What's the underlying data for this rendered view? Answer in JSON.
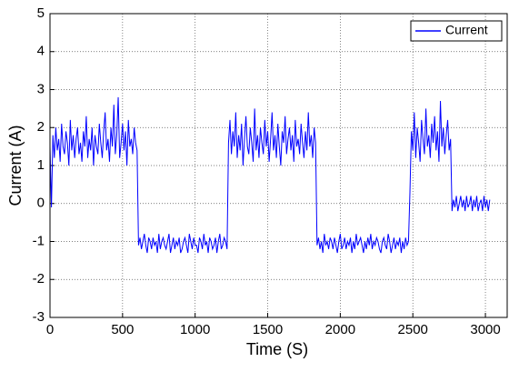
{
  "chart_data": {
    "type": "line",
    "xlabel": "Time (S)",
    "ylabel": "Current (A)",
    "x": [
      0,
      10,
      20,
      30,
      40,
      50,
      60,
      70,
      80,
      90,
      100,
      110,
      120,
      130,
      140,
      150,
      160,
      170,
      180,
      190,
      200,
      210,
      220,
      230,
      240,
      250,
      260,
      270,
      280,
      290,
      300,
      310,
      320,
      330,
      340,
      350,
      360,
      370,
      380,
      390,
      400,
      410,
      420,
      430,
      440,
      450,
      460,
      470,
      480,
      490,
      500,
      510,
      520,
      530,
      540,
      550,
      560,
      570,
      580,
      590,
      600,
      610,
      620,
      630,
      640,
      650,
      660,
      670,
      680,
      690,
      700,
      710,
      720,
      730,
      740,
      750,
      760,
      770,
      780,
      790,
      800,
      810,
      820,
      830,
      840,
      850,
      860,
      870,
      880,
      890,
      900,
      910,
      920,
      930,
      940,
      950,
      960,
      970,
      980,
      990,
      1000,
      1010,
      1020,
      1030,
      1040,
      1050,
      1060,
      1070,
      1080,
      1090,
      1100,
      1110,
      1120,
      1130,
      1140,
      1150,
      1160,
      1170,
      1180,
      1190,
      1200,
      1210,
      1220,
      1230,
      1240,
      1250,
      1260,
      1270,
      1280,
      1290,
      1300,
      1310,
      1320,
      1330,
      1340,
      1350,
      1360,
      1370,
      1380,
      1390,
      1400,
      1410,
      1420,
      1430,
      1440,
      1450,
      1460,
      1470,
      1480,
      1490,
      1500,
      1510,
      1520,
      1530,
      1540,
      1550,
      1560,
      1570,
      1580,
      1590,
      1600,
      1610,
      1620,
      1630,
      1640,
      1650,
      1660,
      1670,
      1680,
      1690,
      1700,
      1710,
      1720,
      1730,
      1740,
      1750,
      1760,
      1770,
      1780,
      1790,
      1800,
      1810,
      1820,
      1830,
      1840,
      1850,
      1860,
      1870,
      1880,
      1890,
      1900,
      1910,
      1920,
      1930,
      1940,
      1950,
      1960,
      1970,
      1980,
      1990,
      2000,
      2010,
      2020,
      2030,
      2040,
      2050,
      2060,
      2070,
      2080,
      2090,
      2100,
      2110,
      2120,
      2130,
      2140,
      2150,
      2160,
      2170,
      2180,
      2190,
      2200,
      2210,
      2220,
      2230,
      2240,
      2250,
      2260,
      2270,
      2280,
      2290,
      2300,
      2310,
      2320,
      2330,
      2340,
      2350,
      2360,
      2370,
      2380,
      2390,
      2400,
      2410,
      2420,
      2430,
      2440,
      2450,
      2460,
      2470,
      2480,
      2490,
      2500,
      2510,
      2520,
      2530,
      2540,
      2550,
      2560,
      2570,
      2580,
      2590,
      2600,
      2610,
      2620,
      2630,
      2640,
      2650,
      2660,
      2670,
      2680,
      2690,
      2700,
      2710,
      2720,
      2730,
      2740,
      2750,
      2760,
      2770,
      2780,
      2790,
      2800,
      2810,
      2820,
      2830,
      2840,
      2850,
      2860,
      2870,
      2880,
      2890,
      2900,
      2910,
      2920,
      2930,
      2940,
      2950,
      2960,
      2970,
      2980,
      2990,
      3000,
      3010,
      3020,
      3030
    ],
    "series": [
      {
        "name": "Current",
        "color": "#0000ff",
        "values": [
          1.5,
          -0.1,
          1.8,
          1.2,
          2.0,
          1.4,
          1.7,
          1.1,
          2.1,
          1.5,
          1.3,
          1.9,
          1.6,
          1.0,
          2.2,
          1.4,
          1.8,
          1.2,
          1.7,
          2.0,
          1.3,
          1.6,
          1.1,
          1.9,
          1.5,
          2.3,
          1.2,
          1.7,
          1.4,
          2.0,
          1.0,
          1.8,
          1.5,
          1.3,
          2.1,
          1.6,
          1.2,
          1.9,
          2.4,
          1.4,
          1.7,
          1.1,
          2.0,
          1.5,
          2.6,
          1.3,
          1.8,
          2.8,
          1.2,
          1.6,
          2.1,
          1.4,
          1.9,
          1.0,
          2.2,
          1.5,
          1.7,
          1.3,
          2.0,
          1.6,
          1.4,
          -1.1,
          -0.9,
          -1.2,
          -1.0,
          -0.8,
          -1.1,
          -1.3,
          -0.9,
          -1.0,
          -1.2,
          -0.9,
          -1.1,
          -1.0,
          -1.3,
          -0.8,
          -1.2,
          -1.0,
          -0.9,
          -1.1,
          -1.2,
          -1.0,
          -0.8,
          -1.3,
          -1.1,
          -0.9,
          -1.2,
          -1.0,
          -1.1,
          -0.9,
          -1.3,
          -1.2,
          -1.0,
          -0.9,
          -1.1,
          -1.3,
          -0.8,
          -1.0,
          -1.2,
          -0.9,
          -1.1,
          -1.1,
          -1.3,
          -0.9,
          -1.0,
          -1.2,
          -0.8,
          -1.1,
          -1.0,
          -1.3,
          -0.9,
          -1.0,
          -1.2,
          -1.1,
          -0.9,
          -1.3,
          -1.0,
          -0.8,
          -1.2,
          -1.1,
          -0.9,
          -1.0,
          -1.2,
          1.6,
          2.2,
          1.3,
          1.9,
          1.5,
          2.4,
          1.2,
          1.8,
          1.4,
          2.1,
          1.0,
          1.7,
          2.3,
          1.5,
          1.3,
          2.0,
          1.6,
          1.1,
          2.5,
          1.4,
          1.8,
          1.2,
          2.0,
          1.6,
          1.3,
          2.2,
          1.5,
          1.9,
          1.1,
          1.7,
          2.4,
          1.4,
          1.8,
          1.2,
          2.1,
          1.5,
          1.0,
          1.9,
          1.6,
          2.3,
          1.3,
          1.7,
          2.0,
          1.4,
          1.8,
          1.1,
          2.2,
          1.5,
          1.7,
          1.3,
          2.1,
          1.6,
          1.2,
          1.9,
          1.4,
          2.4,
          1.5,
          1.8,
          1.2,
          2.0,
          1.6,
          -1.1,
          -0.9,
          -1.2,
          -1.0,
          -1.3,
          -0.8,
          -1.1,
          -1.0,
          -1.2,
          -0.9,
          -1.0,
          -1.2,
          -0.9,
          -1.1,
          -1.3,
          -1.0,
          -0.8,
          -1.2,
          -1.1,
          -0.9,
          -1.2,
          -1.0,
          -1.1,
          -0.9,
          -1.3,
          -1.0,
          -1.2,
          -0.8,
          -1.1,
          -1.0,
          -0.9,
          -1.1,
          -1.3,
          -1.0,
          -1.2,
          -0.9,
          -1.1,
          -0.8,
          -1.2,
          -1.0,
          -1.1,
          -0.9,
          -1.0,
          -1.2,
          -1.3,
          -1.0,
          -0.9,
          -1.1,
          -1.2,
          -0.8,
          -1.0,
          -1.3,
          -1.1,
          -0.9,
          -1.2,
          -1.0,
          -1.1,
          -0.9,
          -1.3,
          -1.0,
          -1.2,
          -0.9,
          -1.1,
          -1.0,
          0.3,
          1.9,
          1.4,
          2.4,
          1.2,
          2.0,
          1.6,
          1.1,
          2.2,
          1.7,
          1.3,
          2.5,
          1.5,
          1.8,
          1.2,
          2.1,
          1.6,
          2.3,
          1.4,
          1.9,
          1.1,
          2.7,
          1.5,
          2.0,
          1.3,
          1.8,
          2.2,
          1.4,
          1.7,
          -0.2,
          0.1,
          -0.1,
          0.2,
          -0.2,
          0.0,
          0.2,
          -0.1,
          0.1,
          -0.2,
          0.2,
          -0.1,
          0.0,
          0.2,
          -0.2,
          0.1,
          -0.1,
          0.2,
          -0.2,
          0.0,
          0.1,
          -0.2,
          0.2,
          -0.1,
          0.1,
          -0.2,
          0.1
        ]
      }
    ],
    "xlim": [
      0,
      3150
    ],
    "xticks": [
      0,
      500,
      1000,
      1500,
      2000,
      2500,
      3000
    ],
    "ylim": [
      -3,
      5
    ],
    "yticks": [
      -3,
      -2,
      -1,
      0,
      1,
      2,
      3,
      4,
      5
    ],
    "grid": true,
    "legend": "upper right"
  }
}
